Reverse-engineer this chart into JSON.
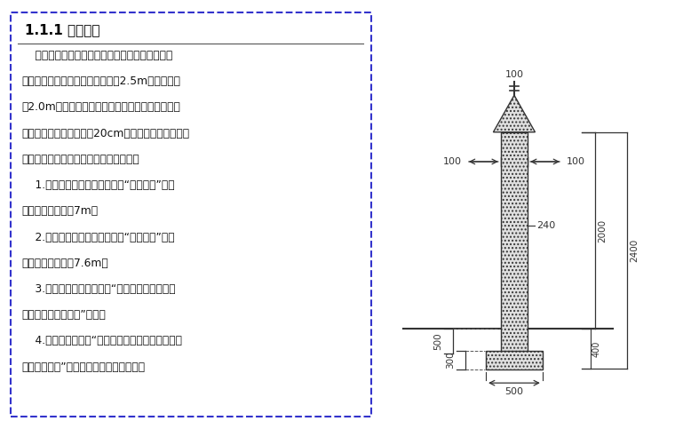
{
  "title": "1.1.1 现场围挡",
  "body_text": [
    "    围墙可用砖筑式，夹芯彩钉板式或波纹彩钉板。",
    "市区主要路段临街围墙高度不低于2.5m，其余不低",
    "于2.0m。市区主要路段临街面使用夹芯板或波纹彩",
    "钉板的，必须砖筑不小于20cm的基础。夹芯板用槽钉",
    "做支架，工字钉做立柱。围墙标志组合：",
    "    1.砖筑式：主要图案为企标加“南通二建”，为",
    "白底蓝字，每组间7m。",
    "    2.金属式：主要图案为企标加“南通二建”，为",
    "白底蓝字，每组间7.6m。",
    "    3.临街面或醒目位置应设“我们在此施工，给您",
    "带来不便，敬请谅解”标语。",
    "    4.靠近大门左侧为“建设单位、监理单位、设计单",
    "位、施工单位”全称，右侧为工程效果图。"
  ],
  "border_color": "#3333cc",
  "bg_color": "#ffffff",
  "title_color": "#000000",
  "text_color": "#000000",
  "diag_labels": {
    "top_100": "100",
    "left_100": "100",
    "right_100": "100",
    "width_240": "240",
    "h_2000": "2000",
    "h_2400": "2400",
    "h_400": "400",
    "d_500": "500",
    "d_300": "300",
    "base_500": "500"
  }
}
